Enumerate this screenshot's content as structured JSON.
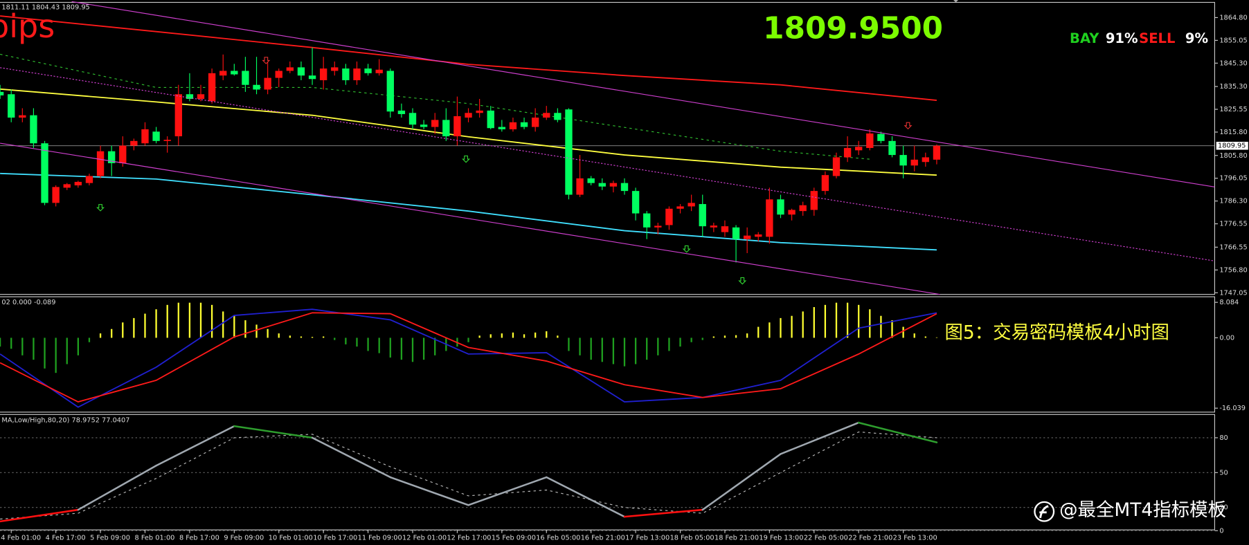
{
  "header": {
    "ohlc": "1811.11 1804.43 1809.95",
    "unit": "pips",
    "price": "1809.9500",
    "bay_label": "BAY",
    "bay_pct": "91%",
    "sell_label": "SELL",
    "sell_pct": "9%"
  },
  "chart_data": [
    {
      "type": "candlestick",
      "up_color": "#ff1010",
      "down_color": "#00ff60",
      "ylim": [
        1746.35,
        1871.3
      ],
      "yticks": [
        {
          "value": 1864.8,
          "label": "1864.80"
        },
        1855.05,
        {
          "value": 1845.3,
          "label": "1845.30"
        },
        {
          "value": 1835.3,
          "label": "1835.30"
        },
        1825.55,
        {
          "value": 1815.8,
          "label": "1815.80"
        },
        {
          "value": 1805.8,
          "label": "1805.80"
        },
        1796.05,
        {
          "value": 1786.3,
          "label": "1786.30"
        },
        1776.55,
        1766.55,
        {
          "value": 1756.8,
          "label": "1756.80"
        },
        1747.05
      ],
      "last_price": {
        "value": 1809.95,
        "label": "1809.95"
      },
      "candles": [
        [
          1833,
          1836,
          1830,
          1831.5
        ],
        [
          1832,
          1834,
          1820,
          1822
        ],
        [
          1822,
          1826,
          1820,
          1823
        ],
        [
          1823,
          1826,
          1809,
          1811
        ],
        [
          1811,
          1812,
          1784.5,
          1785.5
        ],
        [
          1785.5,
          1793,
          1784,
          1792.3
        ],
        [
          1792,
          1794,
          1791,
          1793.5
        ],
        [
          1793,
          1795,
          1792,
          1794.5
        ],
        [
          1794,
          1798,
          1793,
          1797
        ],
        [
          1797,
          1810,
          1796,
          1807.6
        ],
        [
          1807.6,
          1810,
          1797,
          1802.5
        ],
        [
          1802.5,
          1814,
          1801,
          1810
        ],
        [
          1810,
          1813,
          1808,
          1812
        ],
        [
          1811,
          1820,
          1810,
          1817
        ],
        [
          1816,
          1818,
          1811,
          1812
        ],
        [
          1812,
          1814,
          1807,
          1812.5
        ],
        [
          1814,
          1836,
          1810,
          1832
        ],
        [
          1832,
          1841,
          1829,
          1830
        ],
        [
          1830,
          1836,
          1829,
          1832
        ],
        [
          1829,
          1843,
          1828,
          1841
        ],
        [
          1840,
          1849,
          1838,
          1842
        ],
        [
          1842,
          1845,
          1840,
          1840.5
        ],
        [
          1842,
          1848,
          1833,
          1836
        ],
        [
          1836,
          1848,
          1832,
          1834
        ],
        [
          1834,
          1846,
          1832,
          1839
        ],
        [
          1839,
          1843,
          1835,
          1842
        ],
        [
          1842,
          1846,
          1841,
          1843.5
        ],
        [
          1843.5,
          1846,
          1838,
          1840
        ],
        [
          1840,
          1852,
          1836,
          1838.5
        ],
        [
          1838,
          1848,
          1834,
          1843
        ],
        [
          1842,
          1846,
          1840,
          1843.5
        ],
        [
          1843,
          1845,
          1836,
          1838
        ],
        [
          1838,
          1846,
          1836,
          1843
        ],
        [
          1843,
          1845,
          1840,
          1841
        ],
        [
          1841,
          1847,
          1840,
          1842.5
        ],
        [
          1842,
          1843,
          1822,
          1824.6
        ],
        [
          1825,
          1828,
          1822,
          1823.5
        ],
        [
          1824,
          1826,
          1817,
          1819
        ],
        [
          1819,
          1821,
          1817,
          1818
        ],
        [
          1818,
          1824,
          1815,
          1821
        ],
        [
          1821,
          1826,
          1812,
          1814
        ],
        [
          1814,
          1831,
          1810,
          1822.6
        ],
        [
          1822,
          1826,
          1820,
          1824
        ],
        [
          1824,
          1830,
          1822,
          1825
        ],
        [
          1825,
          1827,
          1817,
          1817.5
        ],
        [
          1818,
          1821,
          1816,
          1817
        ],
        [
          1817,
          1822,
          1816,
          1820
        ],
        [
          1820,
          1822,
          1817,
          1818
        ],
        [
          1818,
          1826,
          1816,
          1822
        ],
        [
          1822,
          1827,
          1821,
          1824
        ],
        [
          1824,
          1826,
          1820,
          1821
        ],
        [
          1825.5,
          1826,
          1787,
          1789
        ],
        [
          1789,
          1806,
          1788,
          1796
        ],
        [
          1796,
          1797,
          1793,
          1794
        ],
        [
          1794,
          1796,
          1791,
          1792.5
        ],
        [
          1792.5,
          1795,
          1790,
          1794
        ],
        [
          1794,
          1796,
          1789,
          1790.6
        ],
        [
          1790.6,
          1792,
          1778,
          1781
        ],
        [
          1781,
          1782,
          1770,
          1775
        ],
        [
          1775,
          1777,
          1772,
          1775.7
        ],
        [
          1776,
          1784,
          1774,
          1783
        ],
        [
          1783,
          1785,
          1781,
          1784
        ],
        [
          1784,
          1789,
          1782,
          1785.5
        ],
        [
          1785,
          1789,
          1771,
          1775.5
        ],
        [
          1775,
          1777,
          1773,
          1775.8
        ],
        [
          1773,
          1778,
          1771,
          1775.5
        ],
        [
          1775,
          1776,
          1760,
          1770
        ],
        [
          1770,
          1775,
          1764,
          1771.5
        ],
        [
          1771,
          1773,
          1769,
          1772
        ],
        [
          1771,
          1792,
          1768,
          1787
        ],
        [
          1787,
          1789,
          1779,
          1780.5
        ],
        [
          1780.5,
          1783,
          1778,
          1782.5
        ],
        [
          1782,
          1786,
          1780,
          1784.5
        ],
        [
          1782.5,
          1792,
          1780,
          1790.6
        ],
        [
          1790.6,
          1799,
          1789,
          1797.4
        ],
        [
          1797,
          1807,
          1796,
          1805
        ],
        [
          1805,
          1814,
          1803,
          1809
        ],
        [
          1808,
          1812,
          1806,
          1809.5
        ],
        [
          1809,
          1817,
          1808,
          1815.2
        ],
        [
          1815,
          1816,
          1811,
          1812
        ],
        [
          1812,
          1814,
          1805,
          1806
        ],
        [
          1806,
          1810,
          1796,
          1801.5
        ],
        [
          1801.5,
          1810,
          1799,
          1804
        ],
        [
          1803,
          1807,
          1801,
          1805
        ],
        [
          1804,
          1810.5,
          1802,
          1809.95
        ]
      ],
      "lines": [
        {
          "color": "#ff1a1a",
          "style": "solid",
          "x": [
            0,
            14,
            28,
            42,
            56,
            70,
            84
          ],
          "values": [
            1865.5,
            1858.8,
            1852,
            1844.8,
            1840,
            1836,
            1829.4
          ]
        },
        {
          "color": "#ffff40",
          "style": "solid",
          "x": [
            0,
            14,
            28,
            42,
            56,
            70,
            84
          ],
          "values": [
            1834.2,
            1828.7,
            1823,
            1813.8,
            1806,
            1800.8,
            1797.4
          ]
        },
        {
          "color": "#40e0ff",
          "style": "solid",
          "x": [
            0,
            14,
            28,
            42,
            56,
            70,
            84
          ],
          "values": [
            1798.1,
            1795.7,
            1789,
            1782,
            1773.6,
            1768.5,
            1765.4
          ]
        },
        {
          "color": "#30c030",
          "style": "dashed",
          "x": [
            0,
            14,
            28,
            42,
            56,
            70,
            78
          ],
          "values": [
            1849.1,
            1834.9,
            1834.9,
            1828,
            1817.8,
            1807.6,
            1804.2
          ]
        }
      ]
    },
    {
      "type": "bar",
      "label": "02 0.000 -0.089",
      "pos_color": "#ffff30",
      "neg_color": "#1fa01f",
      "ylim": [
        -16.58,
        8.99
      ],
      "yticks": [
        -16.039,
        {
          "value": 0,
          "label": "0.00"
        },
        8.084
      ],
      "values": [
        -2,
        -2.5,
        -4,
        -5,
        -7,
        -8,
        -6,
        -4,
        -1,
        1,
        2,
        3.5,
        4.5,
        5.5,
        6.5,
        7.5,
        8,
        8,
        8,
        7.5,
        6,
        5,
        4,
        3,
        2,
        1,
        0.5,
        0.3,
        0.2,
        0.3,
        -0.5,
        -1.5,
        -2,
        -3,
        -3.5,
        -4.5,
        -5,
        -5.5,
        -5,
        -4,
        -3,
        -2,
        -1,
        0.5,
        0.8,
        1,
        1.2,
        0.8,
        1.2,
        1.5,
        0.5,
        -3,
        -4,
        -5,
        -5.5,
        -6,
        -6.5,
        -6,
        -5,
        -4,
        -3,
        -2,
        -1,
        -0.5,
        0.3,
        0.5,
        0.6,
        1,
        2.5,
        3.5,
        4.5,
        5,
        6,
        7,
        7.5,
        8,
        8,
        7.5,
        6.5,
        5,
        4,
        2.5,
        1,
        0.3,
        0.1
      ],
      "lines": [
        {
          "color": "#2020d0",
          "style": "solid",
          "x": [
            0,
            7,
            14,
            21,
            28,
            35,
            42,
            49,
            56,
            63,
            70,
            77,
            84
          ],
          "values": [
            -3.7,
            -15.8,
            -6.7,
            5.1,
            6.5,
            4.1,
            -3.7,
            -3.4,
            -14.6,
            -13.6,
            -9.7,
            2.2,
            5.7
          ]
        },
        {
          "color": "#ff1a1a",
          "style": "solid",
          "x": [
            0,
            7,
            14,
            21,
            28,
            35,
            42,
            49,
            56,
            63,
            70,
            77,
            84
          ],
          "values": [
            -5.7,
            -14.6,
            -9.7,
            0.2,
            5.7,
            5.5,
            -2.2,
            -5.3,
            -10.7,
            -13.6,
            -11.6,
            -3.7,
            5.5
          ]
        }
      ]
    },
    {
      "type": "line",
      "label": "MA,Low/High,80,20) 78.9752 77.0407",
      "ylim": [
        0,
        100
      ],
      "yticks": [
        0,
        20,
        50,
        80
      ],
      "high_color": "#2e9e2e",
      "low_color": "#ff1010",
      "mid_color": "#a0a8b0",
      "x": [
        0,
        7,
        14,
        21,
        28,
        35,
        42,
        49,
        56,
        63,
        70,
        77,
        84
      ],
      "main": [
        8,
        18,
        56,
        90,
        80,
        46,
        22,
        46,
        12,
        18,
        66,
        93,
        76
      ],
      "signal": [
        10,
        15,
        45,
        80,
        83,
        55,
        30,
        35,
        20,
        15,
        50,
        85,
        80
      ]
    }
  ],
  "time_labels": [
    "4 Feb 01:00",
    "4 Feb 17:00",
    "5 Feb 09:00",
    "8 Feb 01:00",
    "8 Feb 17:00",
    "9 Feb 09:00",
    "10 Feb 01:00",
    "10 Feb 17:00",
    "11 Feb 09:00",
    "12 Feb 01:00",
    "12 Feb 17:00",
    "15 Feb 09:00",
    "16 Feb 05:00",
    "16 Feb 21:00",
    "17 Feb 13:00",
    "18 Feb 05:00",
    "18 Feb 21:00",
    "19 Feb 13:00",
    "22 Feb 05:00",
    "22 Feb 21:00",
    "23 Feb 13:00"
  ],
  "caption": "图5：交易密码模板4小时图",
  "watermark": "@最全MT4指标模板"
}
